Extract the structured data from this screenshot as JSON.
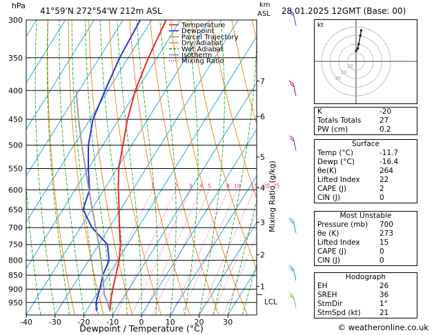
{
  "header": {
    "pressure_unit": "hPa",
    "location": "41°59'N  272°54'W  212m  ASL",
    "height_unit_line1": "km",
    "height_unit_line2": "ASL",
    "datetime": "28.01.2025  12GMT  (Base: 00)"
  },
  "chart_data": {
    "type": "skew-t log-p",
    "xlabel": "Dewpoint / Temperature (°C)",
    "ylabel_right": "Mixing Ratio (g/kg)",
    "y_unit": "hPa",
    "pressure_levels": [
      300,
      350,
      400,
      450,
      500,
      550,
      600,
      650,
      700,
      750,
      800,
      850,
      900,
      950
    ],
    "x_ticks": [
      -40,
      -30,
      -20,
      -10,
      0,
      10,
      20,
      30
    ],
    "xlim": [
      -40,
      40
    ],
    "ylim": [
      1000,
      300
    ],
    "km_ticks": [
      {
        "km": "1",
        "p": 890
      },
      {
        "km": "2",
        "p": 782
      },
      {
        "km": "3",
        "p": 685
      },
      {
        "km": "4",
        "p": 595
      },
      {
        "km": "5",
        "p": 525
      },
      {
        "km": "6",
        "p": 445
      },
      {
        "km": "7",
        "p": 385
      }
    ],
    "lcl": {
      "label": "LCL",
      "p": 920
    },
    "mixing_ratio_labels": [
      "1",
      "2",
      "3",
      "4",
      "5",
      "8",
      "10",
      "15",
      "20",
      "25"
    ],
    "mixing_ratio_values": [
      1,
      2,
      3,
      4,
      5,
      8,
      10,
      15,
      20,
      25
    ],
    "legend": [
      {
        "name": "Temperature",
        "color": "#ee2222"
      },
      {
        "name": "Dewpoint",
        "color": "#2233dd"
      },
      {
        "name": "Parcel Trajectory",
        "color": "#999999"
      },
      {
        "name": "Dry Adiabat",
        "color": "#f08a1c"
      },
      {
        "name": "Wet Adiabat",
        "color": "#22aa22"
      },
      {
        "name": "Isotherm",
        "color": "#22a7e6"
      },
      {
        "name": "Mixing Ratio",
        "color": "#dd2299"
      }
    ],
    "series": [
      {
        "name": "Temperature",
        "color": "#ee2222",
        "p": [
          985,
          950,
          900,
          850,
          800,
          750,
          700,
          650,
          600,
          550,
          500,
          450,
          400,
          350,
          300
        ],
        "t": [
          -11.7,
          -13.5,
          -15.5,
          -17.5,
          -19.5,
          -22.5,
          -26.5,
          -30.5,
          -35,
          -39.5,
          -43,
          -47,
          -50.5,
          -53,
          -55
        ]
      },
      {
        "name": "Dewpoint",
        "color": "#2233dd",
        "p": [
          985,
          950,
          900,
          850,
          800,
          750,
          700,
          650,
          600,
          550,
          500,
          450,
          400,
          350,
          300
        ],
        "t": [
          -16.4,
          -18.5,
          -20,
          -22,
          -23,
          -27,
          -36,
          -43,
          -45,
          -50,
          -55,
          -59,
          -61,
          -63,
          -64
        ]
      },
      {
        "name": "Parcel Trajectory",
        "color": "#999999",
        "p": [
          985,
          950,
          920,
          850,
          800,
          750,
          700,
          650,
          600,
          550,
          500,
          450,
          400
        ],
        "t": [
          -11.7,
          -14.5,
          -17.3,
          -22,
          -25.8,
          -30,
          -34.7,
          -39.8,
          -45.2,
          -51,
          -57.3,
          -64,
          -71
        ]
      }
    ],
    "wind_barbs": [
      {
        "p": 300,
        "color": "#9933cc"
      },
      {
        "p": 400,
        "color": "#cc1177"
      },
      {
        "p": 500,
        "color": "#9933cc"
      },
      {
        "p": 700,
        "color": "#22aacc"
      },
      {
        "p": 850,
        "color": "#22aacc"
      },
      {
        "p": 950,
        "color": "#88cc44"
      }
    ],
    "hodograph": {
      "unit": "kt",
      "ring_labels": [
        "10",
        "20",
        "30"
      ],
      "points_kt": [
        [
          0,
          -12
        ],
        [
          2,
          -15
        ],
        [
          3,
          -20
        ],
        [
          5,
          -30
        ],
        [
          6,
          -36
        ]
      ]
    }
  },
  "indices": {
    "rows": [
      {
        "label": "K",
        "value": "-20"
      },
      {
        "label": "Totals Totals",
        "value": "27"
      },
      {
        "label": "PW (cm)",
        "value": "0.2"
      }
    ]
  },
  "surface": {
    "title": "Surface",
    "rows": [
      {
        "label": "Temp (°C)",
        "value": "-11.7"
      },
      {
        "label": "Dewp (°C)",
        "value": "-16.4"
      },
      {
        "label": "θe(K)",
        "value": "264"
      },
      {
        "label": "Lifted Index",
        "value": "22"
      },
      {
        "label": "CAPE (J)",
        "value": "2"
      },
      {
        "label": "CIN (J)",
        "value": "0"
      }
    ]
  },
  "most_unstable": {
    "title": "Most Unstable",
    "rows": [
      {
        "label": "Pressure (mb)",
        "value": "700"
      },
      {
        "label": "θe (K)",
        "value": "273"
      },
      {
        "label": "Lifted Index",
        "value": "15"
      },
      {
        "label": "CAPE (J)",
        "value": "0"
      },
      {
        "label": "CIN (J)",
        "value": "0"
      }
    ]
  },
  "hodograph_panel": {
    "title": "Hodograph",
    "rows": [
      {
        "label": "EH",
        "value": "26"
      },
      {
        "label": "SREH",
        "value": "36"
      },
      {
        "label": "StmDir",
        "value": "1°"
      },
      {
        "label": "StmSpd (kt)",
        "value": "21"
      }
    ]
  },
  "credit": "© weatheronline.co.uk"
}
